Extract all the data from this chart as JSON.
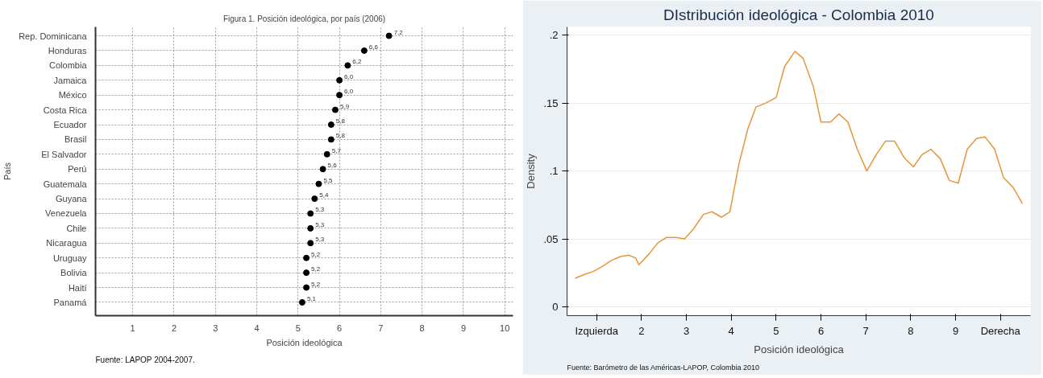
{
  "chart_data": [
    {
      "type": "scatter",
      "orientation": "horizontal",
      "title": "Figura 1. Posición ideológica, por país (2006)",
      "xlabel": "Posición ideológica",
      "ylabel": "País",
      "categories": [
        "Rep. Dominicana",
        "Honduras",
        "Colombia",
        "Jamaica",
        "México",
        "Costa Rica",
        "Ecuador",
        "Brasil",
        "El Salvador",
        "Perú",
        "Guatemala",
        "Guyana",
        "Venezuela",
        "Chile",
        "Nicaragua",
        "Uruguay",
        "Bolivia",
        "Haití",
        "Panamá"
      ],
      "series": [
        {
          "color": "#000000",
          "values": [
            7.2,
            6.6,
            6.2,
            6.0,
            6.0,
            5.9,
            5.8,
            5.8,
            5.7,
            5.6,
            5.5,
            5.4,
            5.3,
            5.3,
            5.3,
            5.2,
            5.2,
            5.2,
            5.1
          ],
          "value_labels": [
            "7,2",
            "6,6",
            "6,2",
            "6,0",
            "6,0",
            "5,9",
            "5,8",
            "5,8",
            "5,7",
            "5,6",
            "5,5",
            "5,4",
            "5,3",
            "5,3",
            "5,3",
            "5,2",
            "5,2",
            "5,2",
            "5,1"
          ]
        }
      ],
      "xlim": [
        0.1,
        10.2
      ],
      "xticks": [
        1,
        2,
        3,
        4,
        5,
        6,
        7,
        8,
        9,
        10
      ],
      "grid": true,
      "marker": "circle",
      "annotations": [
        "Fuente: LAPOP 2004-2007."
      ]
    },
    {
      "type": "line",
      "title": "DIstribución ideológica - Colombia 2010",
      "xlabel": "Posición ideológica",
      "ylabel": "Density",
      "series": [
        {
          "color": "#e8953a",
          "x": [
            0.52,
            0.74,
            0.92,
            1.14,
            1.32,
            1.53,
            1.72,
            1.87,
            1.94,
            2.17,
            2.36,
            2.55,
            2.77,
            2.96,
            3.15,
            3.38,
            3.57,
            3.78,
            3.97,
            4.17,
            4.37,
            4.55,
            4.77,
            5.0,
            5.19,
            5.42,
            5.6,
            5.83,
            6.0,
            6.21,
            6.4,
            6.6,
            6.81,
            7.02,
            7.23,
            7.44,
            7.64,
            7.85,
            8.06,
            8.25,
            8.45,
            8.66,
            8.86,
            9.06,
            9.26,
            9.47,
            9.66,
            9.87,
            10.07,
            10.28,
            10.49
          ],
          "values": [
            0.021,
            0.024,
            0.026,
            0.03,
            0.034,
            0.037,
            0.038,
            0.036,
            0.031,
            0.039,
            0.047,
            0.051,
            0.051,
            0.05,
            0.057,
            0.068,
            0.07,
            0.066,
            0.07,
            0.105,
            0.131,
            0.147,
            0.15,
            0.154,
            0.177,
            0.188,
            0.183,
            0.162,
            0.136,
            0.136,
            0.142,
            0.136,
            0.116,
            0.1,
            0.112,
            0.122,
            0.122,
            0.11,
            0.103,
            0.112,
            0.116,
            0.109,
            0.093,
            0.091,
            0.116,
            0.124,
            0.125,
            0.116,
            0.095,
            0.088,
            0.076
          ]
        }
      ],
      "xlim": [
        0.34,
        10.67
      ],
      "xticks": [
        {
          "value": 1,
          "label": "Izquierda"
        },
        2,
        3,
        4,
        5,
        6,
        7,
        8,
        9,
        {
          "value": 10,
          "label": "Derecha"
        }
      ],
      "ylim": [
        -0.0065,
        0.206
      ],
      "yticks": [
        {
          "value": 0,
          "label": "0"
        },
        {
          "value": 0.05,
          "label": ".05"
        },
        {
          "value": 0.1,
          "label": ".1"
        },
        {
          "value": 0.15,
          "label": ".15"
        },
        {
          "value": 0.2,
          "label": ".2"
        }
      ],
      "grid": "y",
      "line_style": "solid",
      "annotations": [
        "Fuente: Barómetro de las Américas-LAPOP, Colombia 2010"
      ]
    }
  ]
}
